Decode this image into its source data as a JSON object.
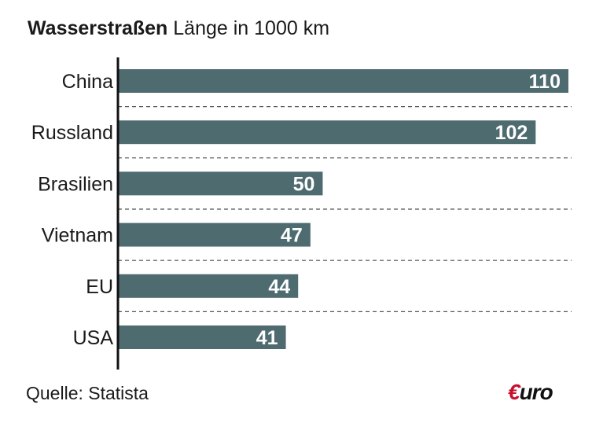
{
  "header": {
    "title": "Wasserstraßen",
    "subtitle": "Länge in 1000 km"
  },
  "footer": {
    "source": "Quelle: Statista",
    "logo_mark": "€",
    "logo_rest": "uro"
  },
  "colors": {
    "bar": "#4e6b70",
    "label_inside": "#ffffff",
    "label_outside": "#111111",
    "axis": "#111111",
    "separator": "#555555",
    "logo_accent": "#c8102e"
  },
  "chart_data": {
    "type": "bar",
    "orientation": "horizontal",
    "title": "Wasserstraßen",
    "subtitle": "Länge in 1000 km",
    "categories": [
      "China",
      "Russland",
      "Brasilien",
      "Vietnam",
      "EU",
      "USA"
    ],
    "values": [
      110,
      102,
      50,
      47,
      44,
      41
    ],
    "xlim": [
      0,
      110
    ],
    "grid": false,
    "data_labels": true
  }
}
